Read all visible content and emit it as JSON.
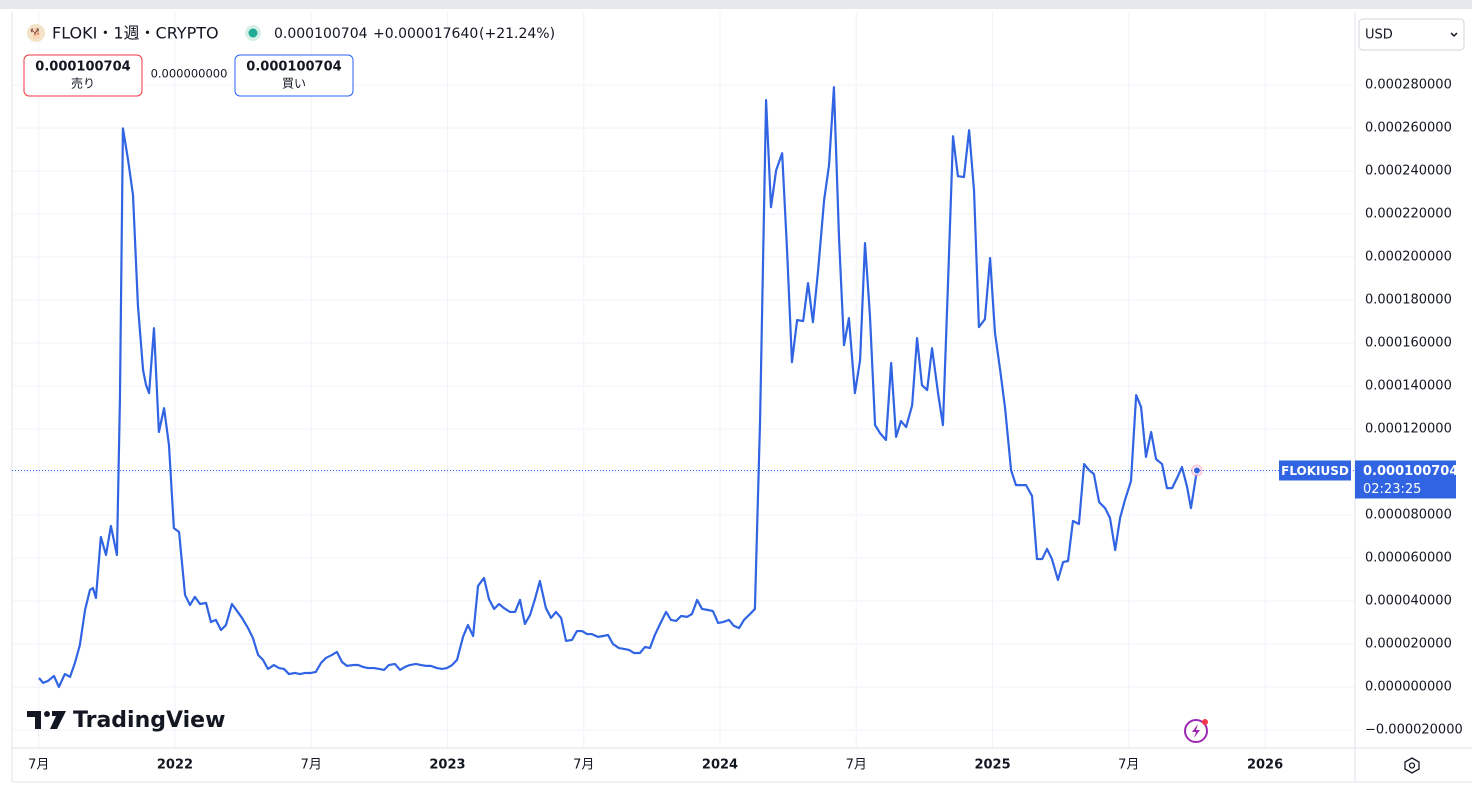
{
  "header": {
    "symbol": "FLOKI・1週・CRYPTO",
    "change": "+0.000017640",
    "change_pct": "(+21.24%)",
    "spread": "0.000000000",
    "sell": "売り",
    "buy": "買い",
    "currency": "USD",
    "logo": "TradingView"
  },
  "chart_data": {
    "type": "line",
    "last_price": 0.000100704,
    "countdown": "02:23:25",
    "x": [
      2021.501,
      2021.516,
      2021.534,
      2021.556,
      2021.574,
      2021.596,
      2021.615,
      2021.633,
      2021.651,
      2021.67,
      2021.688,
      2021.699,
      2021.71,
      2021.728,
      2021.747,
      2021.765,
      2021.787,
      2021.798,
      2021.809,
      2021.828,
      2021.846,
      2021.864,
      2021.883,
      2021.894,
      2021.905,
      2021.923,
      2021.941,
      2021.96,
      2021.978,
      2021.996,
      2022.015,
      2022.037,
      2022.055,
      2022.073,
      2022.092,
      2022.114,
      2022.132,
      2022.15,
      2022.169,
      2022.187,
      2022.209,
      2022.228,
      2022.246,
      2022.268,
      2022.286,
      2022.305,
      2022.323,
      2022.341,
      2022.363,
      2022.382,
      2022.4,
      2022.418,
      2022.44,
      2022.459,
      2022.477,
      2022.499,
      2022.517,
      2022.536,
      2022.554,
      2022.576,
      2022.594,
      2022.613,
      2022.631,
      2022.653,
      2022.672,
      2022.69,
      2022.708,
      2022.73,
      2022.749,
      2022.767,
      2022.785,
      2022.807,
      2022.826,
      2022.844,
      2022.862,
      2022.884,
      2022.903,
      2022.921,
      2022.939,
      2022.961,
      2022.98,
      2022.998,
      2023.017,
      2023.035,
      2023.057,
      2023.075,
      2023.094,
      2023.112,
      2023.134,
      2023.152,
      2023.171,
      2023.189,
      2023.207,
      2023.229,
      2023.248,
      2023.266,
      2023.284,
      2023.303,
      2023.321,
      2023.339,
      2023.361,
      2023.38,
      2023.398,
      2023.417,
      2023.435,
      2023.457,
      2023.475,
      2023.494,
      2023.512,
      2023.53,
      2023.552,
      2023.571,
      2023.589,
      2023.607,
      2023.629,
      2023.648,
      2023.666,
      2023.684,
      2023.706,
      2023.725,
      2023.743,
      2023.761,
      2023.78,
      2023.802,
      2023.82,
      2023.839,
      2023.857,
      2023.879,
      2023.897,
      2023.916,
      2023.934,
      2023.956,
      2023.974,
      2023.993,
      2024.011,
      2024.033,
      2024.051,
      2024.07,
      2024.088,
      2024.11,
      2024.128,
      2024.147,
      2024.169,
      2024.187,
      2024.206,
      2024.228,
      2024.246,
      2024.264,
      2024.283,
      2024.305,
      2024.323,
      2024.341,
      2024.36,
      2024.382,
      2024.4,
      2024.418,
      2024.437,
      2024.455,
      2024.473,
      2024.495,
      2024.514,
      2024.532,
      2024.55,
      2024.569,
      2024.587,
      2024.609,
      2024.628,
      2024.646,
      2024.664,
      2024.683,
      2024.705,
      2024.723,
      2024.741,
      2024.76,
      2024.778,
      2024.8,
      2024.818,
      2024.837,
      2024.855,
      2024.873,
      2024.895,
      2024.914,
      2024.932,
      2024.95,
      2024.972,
      2024.991,
      2025.009,
      2025.028,
      2025.046,
      2025.068,
      2025.086,
      2025.105,
      2025.123,
      2025.145,
      2025.163,
      2025.182,
      2025.2,
      2025.218,
      2025.24,
      2025.259,
      2025.277,
      2025.295,
      2025.317,
      2025.336,
      2025.354,
      2025.372,
      2025.391,
      2025.413,
      2025.431,
      2025.45,
      2025.468,
      2025.486,
      2025.508,
      2025.527,
      2025.545,
      2025.563,
      2025.582,
      2025.6,
      2025.622,
      2025.64,
      2025.659,
      2025.677,
      2025.695,
      2025.714,
      2025.728,
      2025.75
    ],
    "series": [
      {
        "name": "FLOKIUSD",
        "color": "#3064e3",
        "values": [
          4.2e-06,
          1.9e-06,
          2.8e-06,
          5.1e-06,
          0,
          6e-06,
          4.7e-06,
          1.12e-05,
          1.95e-05,
          3.58e-05,
          4.51e-05,
          4.6e-05,
          4.14e-05,
          6.98e-05,
          6.14e-05,
          7.49e-05,
          6.14e-05,
          0.0001335,
          0.0002599,
          0.0002451,
          0.0002288,
          0.0001776,
          0.0001474,
          0.0001404,
          0.0001367,
          0.0001669,
          0.0001186,
          0.0001297,
          0.0001125,
          7.39e-05,
          7.21e-05,
          4.28e-05,
          3.81e-05,
          4.19e-05,
          3.86e-05,
          3.91e-05,
          3.02e-05,
          3.12e-05,
          2.65e-05,
          2.88e-05,
          3.86e-05,
          3.53e-05,
          3.21e-05,
          2.74e-05,
          2.28e-05,
          1.49e-05,
          1.26e-05,
          8.4e-06,
          1.02e-05,
          8.8e-06,
          8.4e-06,
          6e-06,
          6.5e-06,
          6e-06,
          6.5e-06,
          6.5e-06,
          7e-06,
          1.12e-05,
          1.35e-05,
          1.49e-05,
          1.63e-05,
          1.16e-05,
          9.8e-06,
          1.02e-05,
          1.02e-05,
          9.3e-06,
          8.8e-06,
          8.8e-06,
          8.4e-06,
          7.9e-06,
          1.02e-05,
          1.07e-05,
          7.9e-06,
          9.3e-06,
          1.02e-05,
          1.07e-05,
          1.02e-05,
          9.8e-06,
          9.8e-06,
          8.8e-06,
          8.4e-06,
          8.8e-06,
          1.02e-05,
          1.26e-05,
          2.33e-05,
          2.88e-05,
          2.37e-05,
          4.7e-05,
          5.07e-05,
          4.09e-05,
          3.63e-05,
          3.86e-05,
          3.67e-05,
          3.49e-05,
          3.49e-05,
          4.05e-05,
          2.93e-05,
          3.35e-05,
          4.09e-05,
          4.93e-05,
          3.67e-05,
          3.21e-05,
          3.49e-05,
          3.21e-05,
          2.14e-05,
          2.19e-05,
          2.6e-05,
          2.6e-05,
          2.46e-05,
          2.46e-05,
          2.33e-05,
          2.37e-05,
          2.42e-05,
          2e-05,
          1.81e-05,
          1.77e-05,
          1.72e-05,
          1.58e-05,
          1.58e-05,
          1.86e-05,
          1.81e-05,
          2.42e-05,
          2.93e-05,
          3.49e-05,
          3.12e-05,
          3.07e-05,
          3.3e-05,
          3.26e-05,
          3.39e-05,
          4.05e-05,
          3.63e-05,
          3.58e-05,
          3.53e-05,
          2.98e-05,
          3.02e-05,
          3.12e-05,
          2.84e-05,
          2.74e-05,
          3.12e-05,
          3.39e-05,
          3.63e-05,
          0.0001242,
          0.000273,
          0.0002232,
          0.0002404,
          0.0002483,
          0.0002032,
          0.0001511,
          0.0001707,
          0.0001702,
          0.0001879,
          0.0001697,
          0.0001939,
          0.0002265,
          0.0002427,
          0.000279,
          0.0002079,
          0.000159,
          0.0001716,
          0.0001367,
          0.0001521,
          0.0002065,
          0.000173,
          0.0001218,
          0.0001181,
          0.0001149,
          0.0001507,
          0.0001163,
          0.0001237,
          0.0001209,
          0.0001311,
          0.0001623,
          0.0001404,
          0.0001381,
          0.0001576,
          0.0001367,
          0.0001218,
          0.0001893,
          0.0002562,
          0.0002376,
          0.0002372,
          0.000259,
          0.0002311,
          0.0001674,
          0.0001711,
          0.0001995,
          0.0001646,
          0.0001474,
          0.0001297,
          0.0001009,
          9.39e-05,
          9.39e-05,
          9.39e-05,
          8.88e-05,
          5.95e-05,
          5.95e-05,
          6.42e-05,
          5.95e-05,
          4.98e-05,
          5.81e-05,
          5.86e-05,
          7.72e-05,
          7.58e-05,
          0.0001037,
          0.0001009,
          9.9e-05,
          8.6e-05,
          8.32e-05,
          7.86e-05,
          6.37e-05,
          7.86e-05,
          8.7e-05,
          9.58e-05,
          0.0001358,
          0.0001302,
          0.000107,
          0.0001186,
          0.000106,
          0.0001037,
          9.25e-05,
          9.25e-05,
          9.72e-05,
          0.0001023,
          9.3e-05,
          8.32e-05,
          0.000100704
        ]
      }
    ],
    "xlim": [
      2021.402,
      2026.33
    ],
    "xticks": [
      {
        "value": 2021.5,
        "label": "7月"
      },
      2022,
      {
        "value": 2022.5,
        "label": "7月"
      },
      2023,
      {
        "value": 2023.5,
        "label": "7月"
      },
      2024,
      {
        "value": 2024.5,
        "label": "7月"
      },
      2025,
      {
        "value": 2025.5,
        "label": "7月"
      },
      2026
    ],
    "ylim": [
      -2.84e-05,
      0.000314
    ],
    "yticks": [
      {
        "value": -2e-05,
        "label": "−0.000020000"
      },
      {
        "value": 0,
        "label": "0.000000000"
      },
      {
        "value": 2e-05,
        "label": "0.000020000"
      },
      {
        "value": 4e-05,
        "label": "0.000040000"
      },
      {
        "value": 6e-05,
        "label": "0.000060000"
      },
      {
        "value": 8e-05,
        "label": "0.000080000"
      },
      {
        "value": 0.0001,
        "label": "0.000100000"
      },
      {
        "value": 0.00012,
        "label": "0.000120000"
      },
      {
        "value": 0.00014,
        "label": "0.000140000"
      },
      {
        "value": 0.00016,
        "label": "0.000160000"
      },
      {
        "value": 0.00018,
        "label": "0.000180000"
      },
      {
        "value": 0.0002,
        "label": "0.000200000"
      },
      {
        "value": 0.00022,
        "label": "0.000220000"
      },
      {
        "value": 0.00024,
        "label": "0.000240000"
      },
      {
        "value": 0.00026,
        "label": "0.000260000"
      },
      {
        "value": 0.00028,
        "label": "0.000280000"
      }
    ],
    "grid": true
  }
}
